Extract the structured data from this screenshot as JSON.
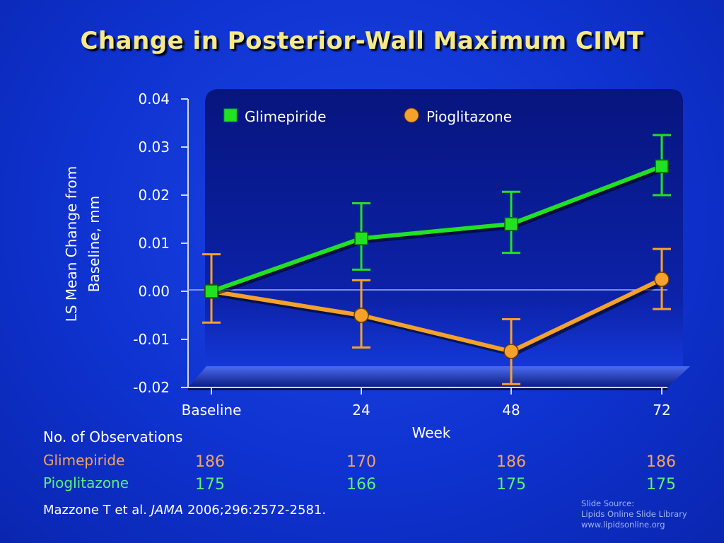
{
  "title": "Change in Posterior-Wall Maximum CIMT",
  "chart_data": {
    "type": "line",
    "categories": [
      "Baseline",
      "24",
      "48",
      "72"
    ],
    "xlabel": "Week",
    "ylabel": "LS Mean Change from Baseline, mm",
    "ylim": [
      -0.02,
      0.04
    ],
    "yticks": [
      "0.04",
      "0.03",
      "0.02",
      "0.01",
      "0.00",
      "-0.01",
      "-0.02"
    ],
    "legend_position": "top",
    "series": [
      {
        "name": "Glimepiride",
        "values": [
          0.0,
          0.011,
          0.014,
          0.026
        ],
        "err_low": [
          0.0,
          0.0045,
          0.008,
          0.02
        ],
        "err_high": [
          0.0,
          0.0183,
          0.0207,
          0.0325
        ],
        "color": "#22e022",
        "marker": "square"
      },
      {
        "name": "Pioglitazone",
        "values": [
          0.0,
          -0.005,
          -0.0125,
          0.0025
        ],
        "err_low": [
          -0.0065,
          -0.0117,
          -0.0193,
          -0.0037
        ],
        "err_high": [
          0.0077,
          0.0023,
          -0.0058,
          0.0088
        ],
        "color": "#f5a12a",
        "marker": "circle"
      }
    ]
  },
  "observations": {
    "title": "No. of Observations",
    "rows": [
      {
        "label": "Glimepiride",
        "values": [
          "186",
          "170",
          "186",
          "186"
        ]
      },
      {
        "label": "Pioglitazone",
        "values": [
          "175",
          "166",
          "175",
          "175"
        ]
      }
    ]
  },
  "citation": {
    "authors": "Mazzone T et al.",
    "journal": "JAMA",
    "ref": "2006;296:2572-2581."
  },
  "source": {
    "line1": "Slide Source:",
    "line2": "Lipids Online Slide Library",
    "line3": "www.lipidsonline.org"
  }
}
